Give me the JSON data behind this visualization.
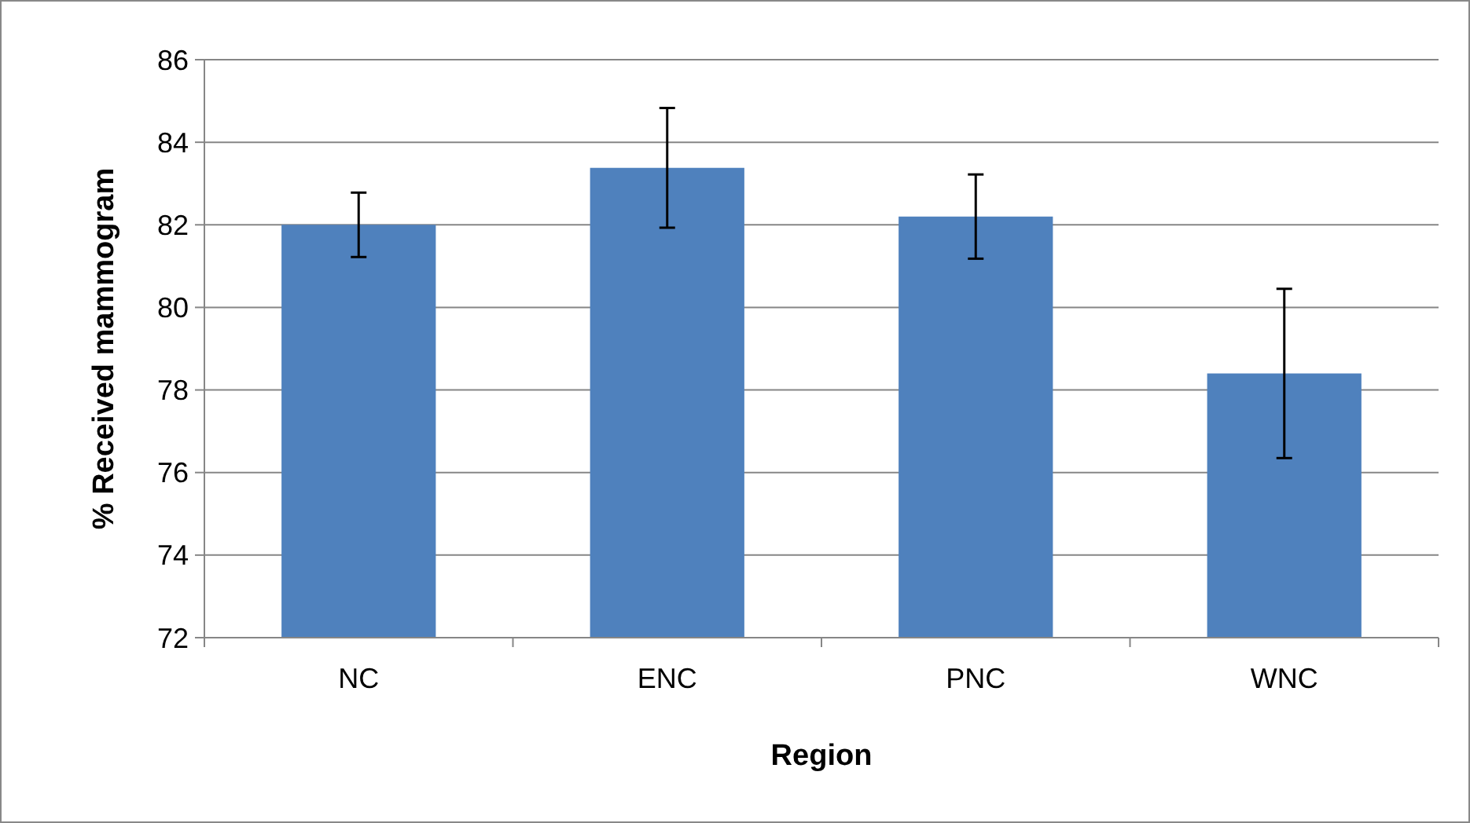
{
  "chart_data": {
    "type": "bar",
    "xlabel": "Region",
    "ylabel": "% Received mammogram",
    "categories": [
      "NC",
      "ENC",
      "PNC",
      "WNC"
    ],
    "values": [
      82.0,
      83.38,
      82.2,
      78.4
    ],
    "errors": [
      0.78,
      1.45,
      1.02,
      2.05
    ],
    "color": "#4f81bd",
    "ylim": [
      72,
      86
    ],
    "yticks": [
      72,
      74,
      76,
      78,
      80,
      82,
      84,
      86
    ],
    "grid": "y"
  }
}
